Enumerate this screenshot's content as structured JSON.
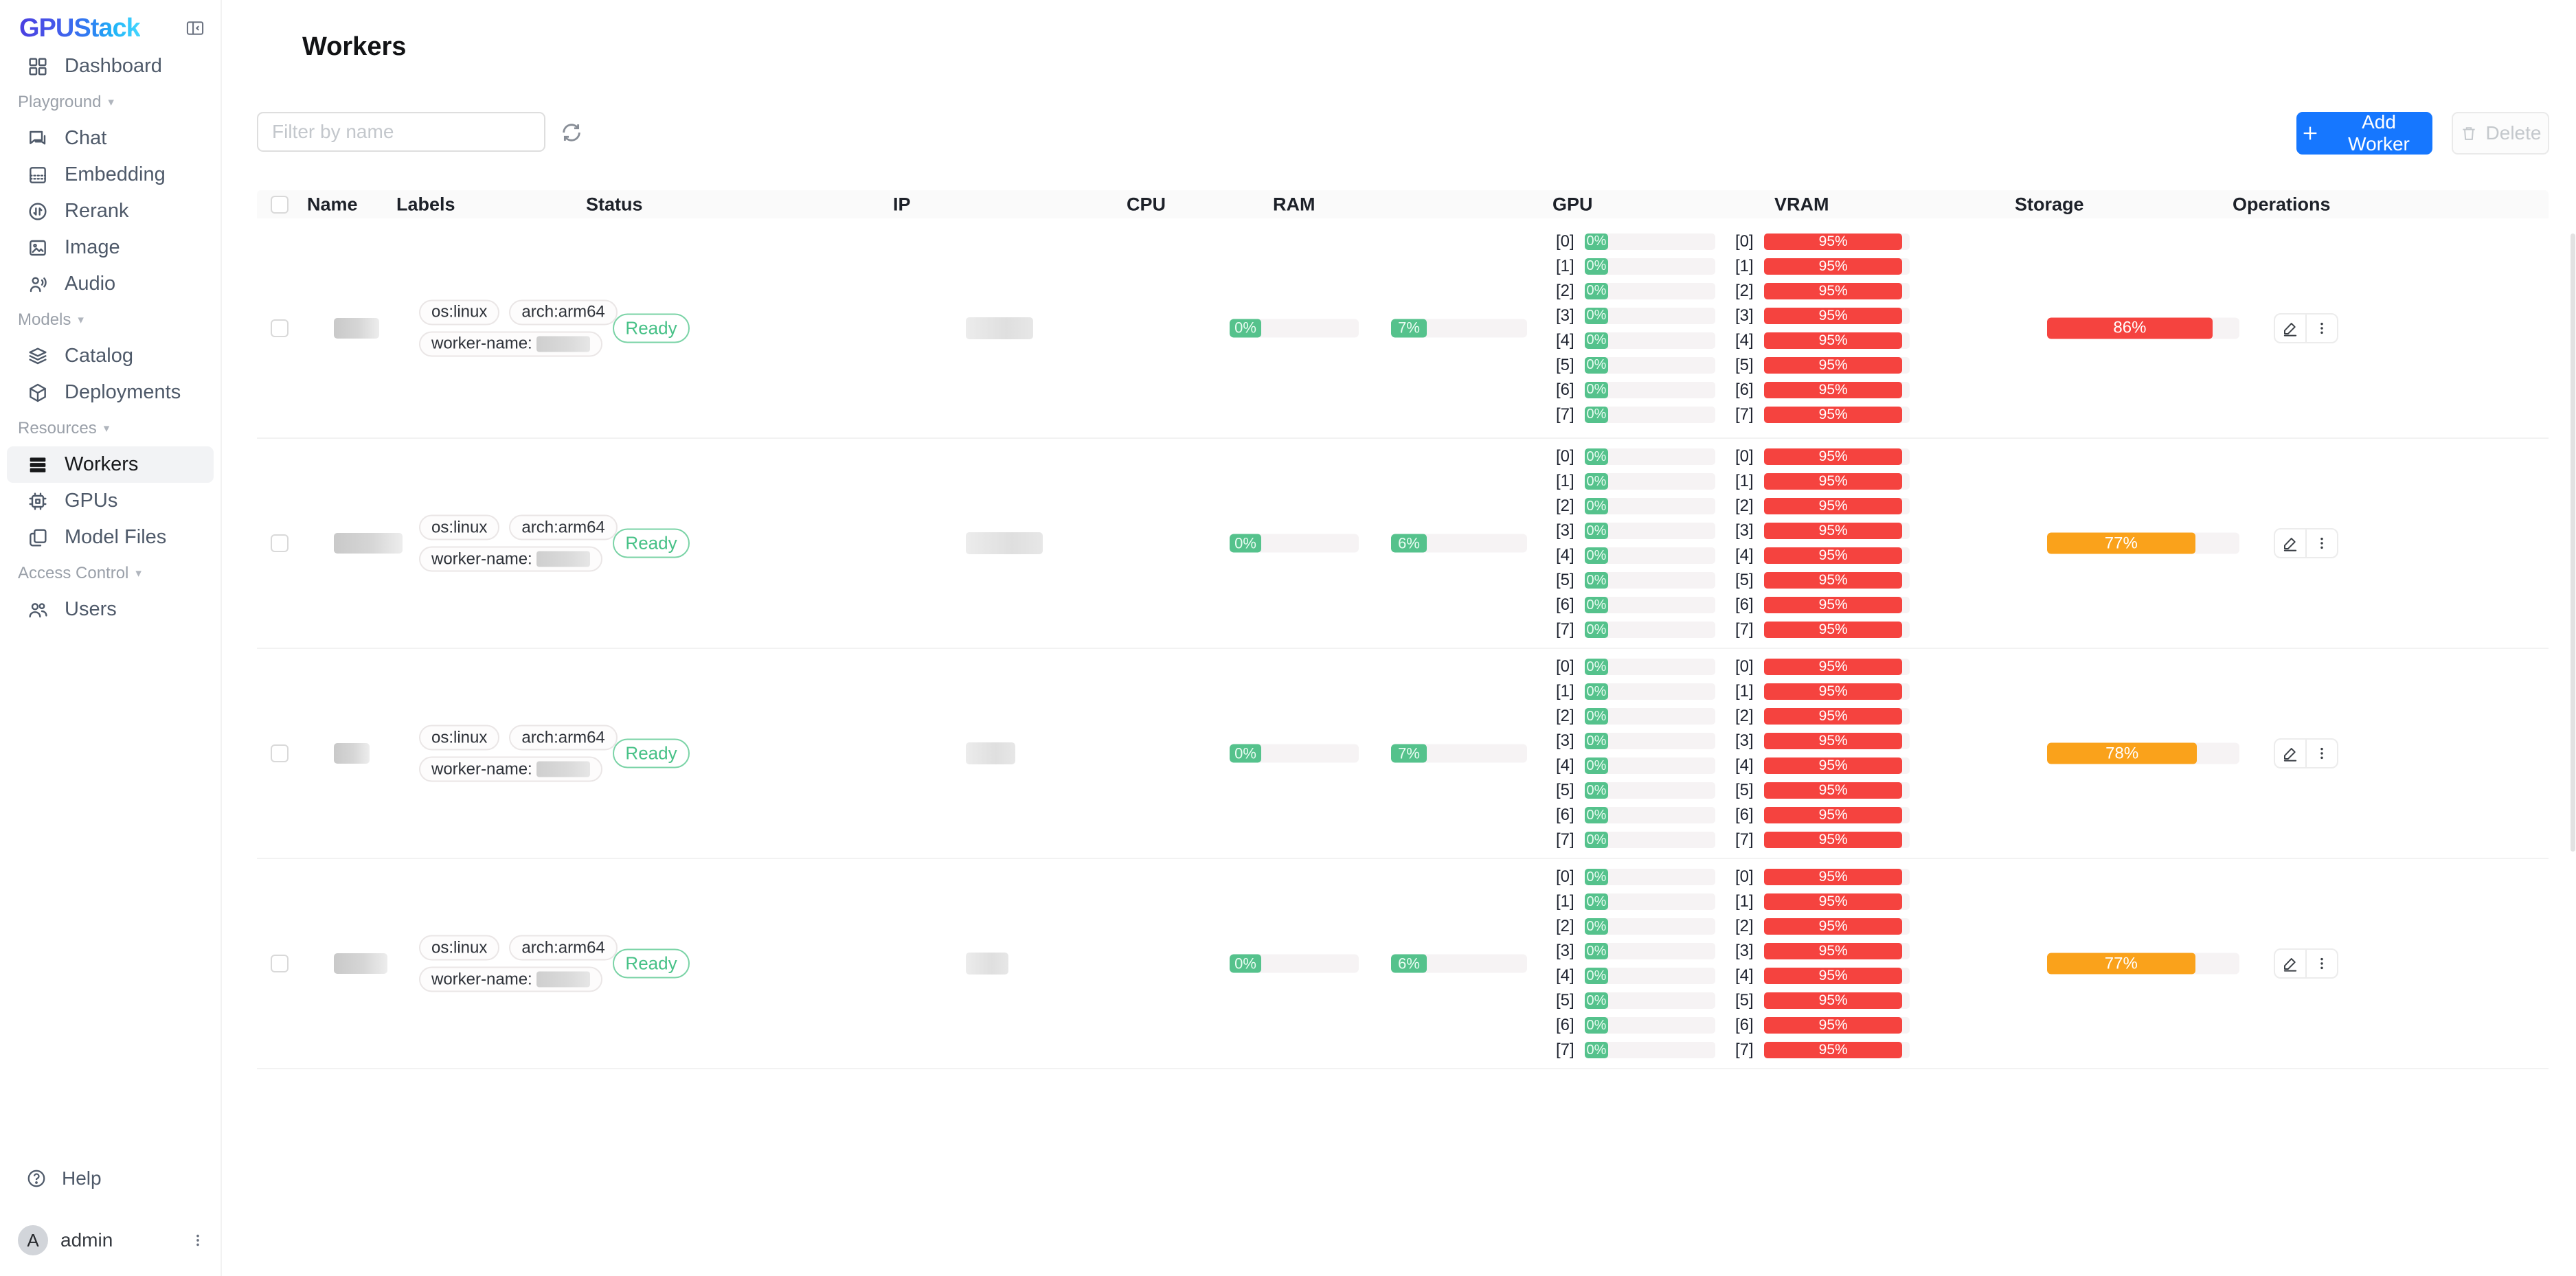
{
  "app": {
    "name": "GPUStack"
  },
  "colors": {
    "accent_blue": "#1677ff",
    "success_green": "#55c28c",
    "danger_red": "#f5433f",
    "warning_orange": "#faa21b",
    "ready_green": "#47c187"
  },
  "sidebar": {
    "sections": [
      {
        "header": null,
        "items": [
          {
            "label": "Dashboard",
            "icon": "dashboard-icon",
            "active": false
          }
        ]
      },
      {
        "header": "Playground",
        "items": [
          {
            "label": "Chat",
            "icon": "chat-icon",
            "active": false
          },
          {
            "label": "Embedding",
            "icon": "embedding-icon",
            "active": false
          },
          {
            "label": "Rerank",
            "icon": "rerank-icon",
            "active": false
          },
          {
            "label": "Image",
            "icon": "image-icon",
            "active": false
          },
          {
            "label": "Audio",
            "icon": "audio-icon",
            "active": false
          }
        ]
      },
      {
        "header": "Models",
        "items": [
          {
            "label": "Catalog",
            "icon": "catalog-icon",
            "active": false
          },
          {
            "label": "Deployments",
            "icon": "deployments-icon",
            "active": false
          }
        ]
      },
      {
        "header": "Resources",
        "items": [
          {
            "label": "Workers",
            "icon": "workers-icon",
            "active": true
          },
          {
            "label": "GPUs",
            "icon": "gpu-chip-icon",
            "active": false
          },
          {
            "label": "Model Files",
            "icon": "model-files-icon",
            "active": false
          }
        ]
      },
      {
        "header": "Access Control",
        "items": [
          {
            "label": "Users",
            "icon": "users-icon",
            "active": false
          }
        ]
      }
    ],
    "footer": {
      "help_label": "Help",
      "user": {
        "initial": "A",
        "name": "admin"
      }
    }
  },
  "page": {
    "title": "Workers"
  },
  "toolbar": {
    "filter_placeholder": "Filter by name",
    "refresh_icon": "refresh-icon",
    "add_label": "Add Worker",
    "delete_label": "Delete"
  },
  "table": {
    "columns": [
      "Name",
      "Labels",
      "Status",
      "IP",
      "CPU",
      "RAM",
      "GPU",
      "VRAM",
      "Storage",
      "Operations"
    ],
    "rows": [
      {
        "name_redacted": true,
        "ip_redacted": true,
        "labels": [
          "os:linux",
          "arch:arm64"
        ],
        "worker_name_prefix": "worker-name:",
        "status": "Ready",
        "cpu": "0%",
        "ram": "7%",
        "gpus": [
          {
            "index": "[0]",
            "util": "0%",
            "vram": "95%"
          },
          {
            "index": "[1]",
            "util": "0%",
            "vram": "95%"
          },
          {
            "index": "[2]",
            "util": "0%",
            "vram": "95%"
          },
          {
            "index": "[3]",
            "util": "0%",
            "vram": "95%"
          },
          {
            "index": "[4]",
            "util": "0%",
            "vram": "95%"
          },
          {
            "index": "[5]",
            "util": "0%",
            "vram": "95%"
          },
          {
            "index": "[6]",
            "util": "0%",
            "vram": "95%"
          },
          {
            "index": "[7]",
            "util": "0%",
            "vram": "95%"
          }
        ],
        "storage": {
          "text": "86%",
          "percent": 86,
          "level": "danger_red"
        }
      },
      {
        "name_redacted": true,
        "ip_redacted": true,
        "labels": [
          "os:linux",
          "arch:arm64"
        ],
        "worker_name_prefix": "worker-name:",
        "status": "Ready",
        "cpu": "0%",
        "ram": "6%",
        "gpus": [
          {
            "index": "[0]",
            "util": "0%",
            "vram": "95%"
          },
          {
            "index": "[1]",
            "util": "0%",
            "vram": "95%"
          },
          {
            "index": "[2]",
            "util": "0%",
            "vram": "95%"
          },
          {
            "index": "[3]",
            "util": "0%",
            "vram": "95%"
          },
          {
            "index": "[4]",
            "util": "0%",
            "vram": "95%"
          },
          {
            "index": "[5]",
            "util": "0%",
            "vram": "95%"
          },
          {
            "index": "[6]",
            "util": "0%",
            "vram": "95%"
          },
          {
            "index": "[7]",
            "util": "0%",
            "vram": "95%"
          }
        ],
        "storage": {
          "text": "77%",
          "percent": 77,
          "level": "warning_orange"
        }
      },
      {
        "name_redacted": true,
        "ip_redacted": true,
        "labels": [
          "os:linux",
          "arch:arm64"
        ],
        "worker_name_prefix": "worker-name:",
        "status": "Ready",
        "cpu": "0%",
        "ram": "7%",
        "gpus": [
          {
            "index": "[0]",
            "util": "0%",
            "vram": "95%"
          },
          {
            "index": "[1]",
            "util": "0%",
            "vram": "95%"
          },
          {
            "index": "[2]",
            "util": "0%",
            "vram": "95%"
          },
          {
            "index": "[3]",
            "util": "0%",
            "vram": "95%"
          },
          {
            "index": "[4]",
            "util": "0%",
            "vram": "95%"
          },
          {
            "index": "[5]",
            "util": "0%",
            "vram": "95%"
          },
          {
            "index": "[6]",
            "util": "0%",
            "vram": "95%"
          },
          {
            "index": "[7]",
            "util": "0%",
            "vram": "95%"
          }
        ],
        "storage": {
          "text": "78%",
          "percent": 78,
          "level": "warning_orange"
        }
      },
      {
        "name_redacted": true,
        "ip_redacted": true,
        "labels": [
          "os:linux",
          "arch:arm64"
        ],
        "worker_name_prefix": "worker-name:",
        "status": "Ready",
        "cpu": "0%",
        "ram": "6%",
        "gpus": [
          {
            "index": "[0]",
            "util": "0%",
            "vram": "95%"
          },
          {
            "index": "[1]",
            "util": "0%",
            "vram": "95%"
          },
          {
            "index": "[2]",
            "util": "0%",
            "vram": "95%"
          },
          {
            "index": "[3]",
            "util": "0%",
            "vram": "95%"
          },
          {
            "index": "[4]",
            "util": "0%",
            "vram": "95%"
          },
          {
            "index": "[5]",
            "util": "0%",
            "vram": "95%"
          },
          {
            "index": "[6]",
            "util": "0%",
            "vram": "95%"
          },
          {
            "index": "[7]",
            "util": "0%",
            "vram": "95%"
          }
        ],
        "storage": {
          "text": "77%",
          "percent": 77,
          "level": "warning_orange"
        }
      }
    ]
  }
}
